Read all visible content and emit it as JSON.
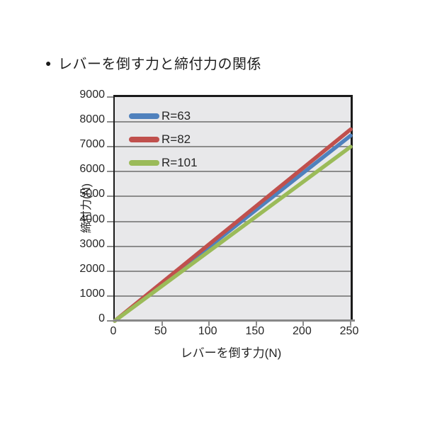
{
  "title": {
    "bullet": "●",
    "text": "レバーを倒す力と締付力の関係"
  },
  "chart_data": {
    "type": "line",
    "title": "レバーを倒す力と締付力の関係",
    "xlabel": "レバーを倒す力(N)",
    "ylabel": "締付力(N)",
    "xlim": [
      0,
      250
    ],
    "ylim": [
      0,
      9000
    ],
    "x_ticks": [
      0,
      50,
      100,
      150,
      200,
      250
    ],
    "y_ticks": [
      0,
      1000,
      2000,
      3000,
      4000,
      5000,
      6000,
      7000,
      8000,
      9000
    ],
    "grid": "horizontal-only",
    "legend_position": "top-left-inside",
    "x": [
      0,
      250
    ],
    "series": [
      {
        "name": "R=63",
        "color": "#4F81BD",
        "values": [
          0,
          7450
        ]
      },
      {
        "name": "R=82",
        "color": "#C0504D",
        "values": [
          0,
          7700
        ]
      },
      {
        "name": "R=101",
        "color": "#9BBB59",
        "values": [
          0,
          7000
        ]
      }
    ],
    "colors": {
      "plot_background": "#e8e8ea",
      "gridline": "#8c8c8c",
      "border": "#1a1a1a",
      "bottom_axis": "#888888",
      "text": "#262626"
    }
  }
}
